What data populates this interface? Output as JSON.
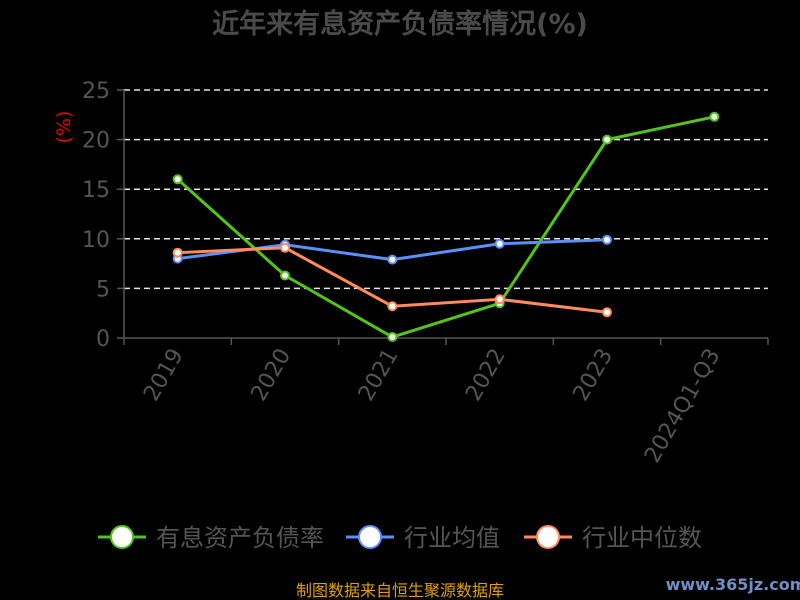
{
  "chart_data": {
    "type": "line",
    "title": "近年来有息资产负债率情况(%)",
    "y_unit_label": "(%)",
    "categories": [
      "2019",
      "2020",
      "2021",
      "2022",
      "2023",
      "2024Q1-Q3"
    ],
    "ylim": [
      0,
      25
    ],
    "yticks": [
      0,
      5,
      10,
      15,
      20,
      25
    ],
    "grid": true,
    "legend_position": "bottom",
    "series": [
      {
        "name": "有息资产负债率",
        "color": "#52c41a",
        "values": [
          16.0,
          6.3,
          0.1,
          3.5,
          20.0,
          22.3
        ]
      },
      {
        "name": "行业均值",
        "color": "#5b8ff9",
        "values": [
          8.0,
          9.4,
          7.9,
          9.5,
          9.9,
          null
        ]
      },
      {
        "name": "行业中位数",
        "color": "#ff8c5a",
        "values": [
          8.6,
          9.1,
          3.2,
          3.9,
          2.6,
          null
        ]
      }
    ]
  },
  "footer": {
    "source": "制图数据来自恒生聚源数据库"
  },
  "watermark": {
    "text": "www.365jz.com"
  }
}
